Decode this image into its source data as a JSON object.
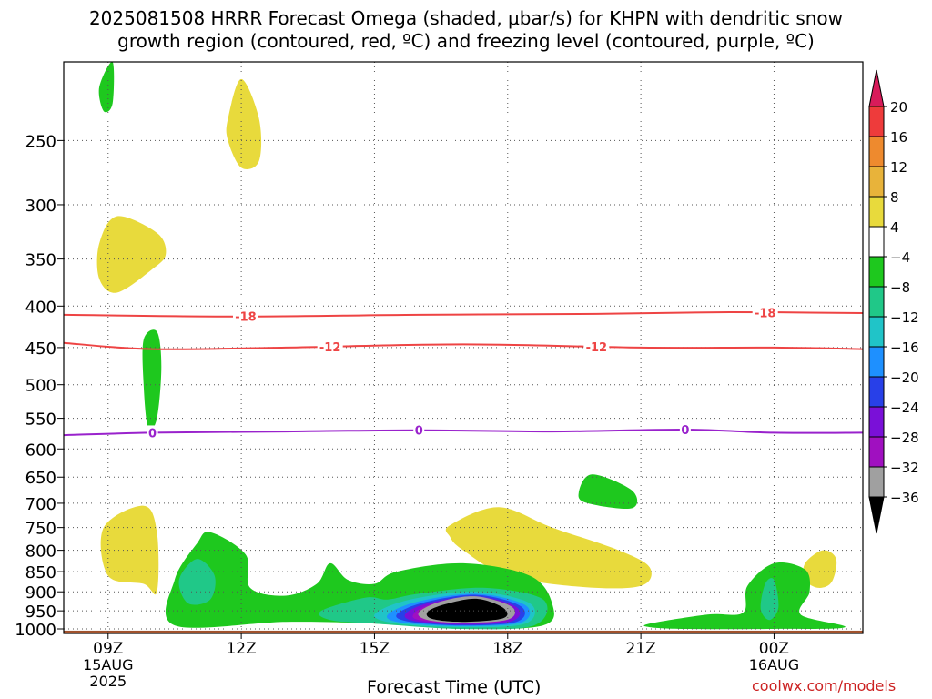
{
  "title_line1": "2025081508 HRRR Forecast Omega (shaded, μbar/s) for KHPN with dendritic snow",
  "title_line2": "growth region (contoured, red, ºC) and freezing level (contoured, purple, ºC)",
  "credit": "coolwx.com/models",
  "chart_data": {
    "type": "time-height cross section",
    "title": "2025081508 HRRR Forecast Omega (shaded, μbar/s) for KHPN with dendritic snow growth region (contoured, red, ºC) and freezing level (contoured, purple, ºC)",
    "xlabel": "Forecast Time (UTC)",
    "ylabel": "",
    "x_ticks": [
      {
        "hour": 9,
        "label": "09Z",
        "sub": [
          "15AUG",
          "2025"
        ]
      },
      {
        "hour": 12,
        "label": "12Z",
        "sub": []
      },
      {
        "hour": 15,
        "label": "15Z",
        "sub": []
      },
      {
        "hour": 18,
        "label": "18Z",
        "sub": []
      },
      {
        "hour": 21,
        "label": "21Z",
        "sub": []
      },
      {
        "hour": 24,
        "label": "00Z",
        "sub": [
          "16AUG"
        ]
      }
    ],
    "xlim_hours": [
      8,
      26
    ],
    "y_ticks": [
      250,
      300,
      350,
      400,
      450,
      500,
      550,
      600,
      650,
      700,
      750,
      800,
      850,
      900,
      950,
      1000
    ],
    "ylim_hPa": [
      1013,
      200
    ],
    "y_scale": "log-pressure",
    "grid": "dotted",
    "colorbar": {
      "levels": [
        20,
        16,
        12,
        8,
        4,
        -4,
        -8,
        -12,
        -16,
        -20,
        -24,
        -28,
        -32,
        -36
      ],
      "colors": [
        "#d81b5a",
        "#ee3b3b",
        "#ee8a2e",
        "#e8b33a",
        "#e8da3c",
        "#ffffff",
        "#1ec81e",
        "#20c888",
        "#20c4c8",
        "#1e90ff",
        "#2840e8",
        "#7a10d8",
        "#a010c0",
        "#a0a0a0",
        "#000000"
      ]
    },
    "contours": [
      {
        "name": "dgz -18",
        "label": "-18",
        "color": "#ee4444",
        "points": [
          [
            8,
            410
          ],
          [
            12,
            412
          ],
          [
            16,
            410
          ],
          [
            20,
            409
          ],
          [
            23,
            407
          ],
          [
            26,
            408
          ]
        ],
        "label_hours": [
          12.1,
          23.8
        ]
      },
      {
        "name": "dgz -12",
        "label": "-12",
        "color": "#ee4444",
        "points": [
          [
            8,
            444
          ],
          [
            10,
            452
          ],
          [
            13,
            450
          ],
          [
            17,
            446
          ],
          [
            21,
            450
          ],
          [
            24,
            450
          ],
          [
            26,
            452
          ]
        ],
        "label_hours": [
          14,
          20
        ]
      },
      {
        "name": "freezing level",
        "label": "0",
        "color": "#9922cc",
        "points": [
          [
            8,
            577
          ],
          [
            10,
            573
          ],
          [
            13,
            571
          ],
          [
            16,
            569
          ],
          [
            19,
            571
          ],
          [
            22,
            568
          ],
          [
            24,
            573
          ],
          [
            26,
            573
          ]
        ],
        "label_hours": [
          10,
          16,
          22
        ]
      }
    ],
    "omega_regions": [
      {
        "value": 4,
        "points": [
          [
            8.9,
            750
          ],
          [
            9.8,
            705
          ],
          [
            10.1,
            760
          ],
          [
            10.1,
            900
          ],
          [
            9.8,
            880
          ],
          [
            9,
            860
          ]
        ]
      },
      {
        "value": 4,
        "points": [
          [
            8.8,
            335
          ],
          [
            9.2,
            310
          ],
          [
            10.1,
            325
          ],
          [
            10.3,
            345
          ],
          [
            10,
            360
          ],
          [
            9.2,
            385
          ],
          [
            8.8,
            370
          ]
        ]
      },
      {
        "value": 4,
        "points": [
          [
            11.7,
            235
          ],
          [
            12,
            210
          ],
          [
            12.4,
            235
          ],
          [
            12.4,
            265
          ],
          [
            12,
            270
          ],
          [
            11.7,
            250
          ]
        ]
      },
      {
        "value": 4,
        "points": [
          [
            16.7,
            745
          ],
          [
            17.8,
            708
          ],
          [
            19,
            750
          ],
          [
            20.5,
            800
          ],
          [
            21.2,
            840
          ],
          [
            21,
            885
          ],
          [
            19.7,
            888
          ],
          [
            18,
            860
          ],
          [
            17,
            800
          ],
          [
            16.7,
            770
          ]
        ]
      },
      {
        "value": 4,
        "points": [
          [
            24.7,
            830
          ],
          [
            25.1,
            800
          ],
          [
            25.4,
            820
          ],
          [
            25.3,
            875
          ],
          [
            25,
            890
          ],
          [
            24.7,
            870
          ]
        ]
      },
      {
        "value": -4,
        "points": [
          [
            8.8,
            215
          ],
          [
            9.1,
            200
          ],
          [
            9.1,
            225
          ],
          [
            8.9,
            230
          ]
        ]
      },
      {
        "value": -4,
        "points": [
          [
            9.8,
            440
          ],
          [
            10.1,
            430
          ],
          [
            10.2,
            475
          ],
          [
            10.1,
            550
          ],
          [
            9.9,
            565
          ],
          [
            9.8,
            500
          ]
        ]
      },
      {
        "value": -4,
        "points": [
          [
            19.6,
            680
          ],
          [
            19.9,
            645
          ],
          [
            20.8,
            675
          ],
          [
            20.8,
            710
          ],
          [
            19.8,
            700
          ]
        ]
      },
      {
        "value": -4,
        "points": [
          [
            10.5,
            870
          ],
          [
            11,
            785
          ],
          [
            11.3,
            760
          ],
          [
            12.1,
            810
          ],
          [
            12.2,
            890
          ],
          [
            13,
            910
          ],
          [
            13.7,
            880
          ],
          [
            14,
            830
          ],
          [
            14.4,
            870
          ],
          [
            15,
            880
          ],
          [
            15.5,
            850
          ],
          [
            17,
            830
          ],
          [
            18.5,
            860
          ],
          [
            19,
            930
          ],
          [
            18.8,
            990
          ],
          [
            17,
            1000
          ],
          [
            15,
            985
          ],
          [
            13,
            980
          ],
          [
            10.5,
            990
          ]
        ]
      },
      {
        "value": -4,
        "points": [
          [
            21.2,
            985
          ],
          [
            22.5,
            960
          ],
          [
            23.3,
            955
          ],
          [
            23.4,
            885
          ],
          [
            24,
            830
          ],
          [
            24.7,
            845
          ],
          [
            24.8,
            900
          ],
          [
            24.6,
            960
          ],
          [
            25.6,
            995
          ],
          [
            24,
            1000
          ],
          [
            22,
            1000
          ],
          [
            21.2,
            995
          ]
        ]
      },
      {
        "value": -8,
        "points": [
          [
            10.6,
            870
          ],
          [
            11,
            820
          ],
          [
            11.4,
            860
          ],
          [
            11.3,
            920
          ],
          [
            10.8,
            930
          ]
        ]
      },
      {
        "value": -8,
        "points": [
          [
            13.8,
            950
          ],
          [
            14.8,
            915
          ],
          [
            15.3,
            920
          ],
          [
            16,
            905
          ],
          [
            17.5,
            890
          ],
          [
            18.8,
            920
          ],
          [
            18.6,
            990
          ],
          [
            17,
            1000
          ],
          [
            15,
            985
          ],
          [
            14,
            975
          ]
        ]
      },
      {
        "value": -8,
        "points": [
          [
            23.8,
            880
          ],
          [
            24,
            870
          ],
          [
            24.1,
            940
          ],
          [
            23.9,
            975
          ],
          [
            23.7,
            945
          ]
        ]
      },
      {
        "value": -12,
        "points": [
          [
            15,
            960
          ],
          [
            15.8,
            920
          ],
          [
            17.3,
            900
          ],
          [
            18.5,
            930
          ],
          [
            18.4,
            985
          ],
          [
            17,
            995
          ],
          [
            15.5,
            985
          ]
        ]
      },
      {
        "value": -16,
        "points": [
          [
            15.3,
            960
          ],
          [
            16,
            925
          ],
          [
            17.3,
            905
          ],
          [
            18.4,
            935
          ],
          [
            18.3,
            982
          ],
          [
            17,
            992
          ],
          [
            15.6,
            982
          ]
        ]
      },
      {
        "value": -20,
        "points": [
          [
            15.5,
            960
          ],
          [
            16.1,
            928
          ],
          [
            17.3,
            908
          ],
          [
            18.3,
            938
          ],
          [
            18.2,
            980
          ],
          [
            17,
            990
          ],
          [
            15.8,
            980
          ]
        ]
      },
      {
        "value": -24,
        "points": [
          [
            15.7,
            958
          ],
          [
            16.2,
            930
          ],
          [
            17.3,
            912
          ],
          [
            18.2,
            940
          ],
          [
            18.1,
            978
          ],
          [
            17,
            988
          ],
          [
            15.9,
            978
          ]
        ]
      },
      {
        "value": -28,
        "points": [
          [
            15.9,
            956
          ],
          [
            16.3,
            932
          ],
          [
            17.3,
            915
          ],
          [
            18.1,
            942
          ],
          [
            18,
            975
          ],
          [
            17,
            985
          ],
          [
            16,
            975
          ]
        ]
      },
      {
        "value": -32,
        "points": [
          [
            16,
            954
          ],
          [
            16.5,
            925
          ],
          [
            17.3,
            912
          ],
          [
            18.1,
            940
          ],
          [
            18,
            974
          ],
          [
            17,
            983
          ],
          [
            16.2,
            975
          ]
        ]
      },
      {
        "value": -36,
        "points": [
          [
            16.2,
            952
          ],
          [
            16.6,
            932
          ],
          [
            17.3,
            918
          ],
          [
            17.9,
            942
          ],
          [
            17.9,
            970
          ],
          [
            17,
            980
          ],
          [
            16.3,
            972
          ]
        ]
      }
    ],
    "terrain_hPa": 1005
  }
}
